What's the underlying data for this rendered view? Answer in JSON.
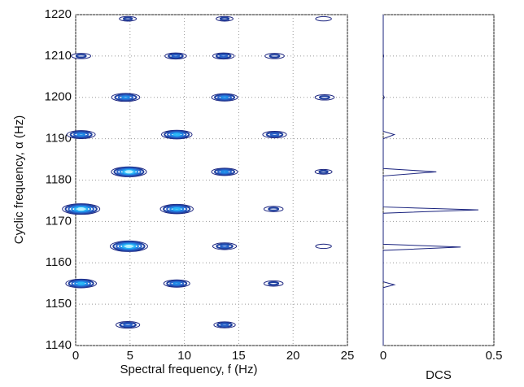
{
  "chart_data": [
    {
      "type": "contour",
      "xlabel": "Spectral frequency, f (Hz)",
      "ylabel": "Cyclic frequency, α (Hz)",
      "x": [
        4.8,
        13.7,
        22.8,
        0.5,
        9.2,
        13.6,
        18.3,
        4.6,
        13.7,
        22.9,
        0.5,
        9.3,
        18.3,
        4.9,
        13.7,
        22.8,
        0.5,
        9.3,
        18.2,
        4.9,
        13.7,
        22.8,
        0.5,
        9.3,
        18.2,
        4.8,
        13.7
      ],
      "y": [
        1219,
        1219,
        1219,
        1210,
        1210,
        1210,
        1210,
        1200,
        1200,
        1200,
        1191,
        1191,
        1191,
        1182,
        1182,
        1182,
        1173,
        1173,
        1173,
        1164,
        1164,
        1164,
        1155,
        1155,
        1155,
        1145,
        1145
      ],
      "values": [
        0.1,
        0.1,
        0.05,
        0.2,
        0.3,
        0.3,
        0.2,
        0.6,
        0.5,
        0.2,
        0.6,
        0.7,
        0.4,
        0.9,
        0.5,
        0.1,
        1.0,
        0.8,
        0.2,
        1.0,
        0.4,
        0.05,
        0.7,
        0.5,
        0.2,
        0.4,
        0.3
      ],
      "xlim": [
        0,
        25
      ],
      "xticks": [
        0,
        5,
        10,
        15,
        20,
        25
      ],
      "ylim": [
        1140,
        1220
      ],
      "yticks": [
        1140,
        1150,
        1160,
        1170,
        1180,
        1190,
        1200,
        1210,
        1220
      ],
      "grid": true
    },
    {
      "type": "line",
      "xlabel": "DCS",
      "color": "#1a237e",
      "alpha": [
        1140,
        1154,
        1154.7,
        1155.4,
        1163,
        1163.8,
        1164.5,
        1172,
        1172.8,
        1173.5,
        1181,
        1182,
        1182.8,
        1190,
        1191,
        1191.8,
        1199.5,
        1200,
        1200.5,
        1209.5,
        1210,
        1210.5,
        1220
      ],
      "values": [
        0,
        0,
        0.05,
        0,
        0,
        0.35,
        0,
        0,
        0.43,
        0,
        0,
        0.24,
        0,
        0,
        0.05,
        0,
        0,
        0.005,
        0,
        0,
        0.002,
        0,
        0
      ],
      "xlim": [
        0,
        0.5
      ],
      "xticks": [
        0,
        0.5
      ],
      "ylim": [
        1140,
        1220
      ],
      "yticks": [
        1140,
        1150,
        1160,
        1170,
        1180,
        1190,
        1200,
        1210,
        1220
      ],
      "grid": true
    }
  ]
}
